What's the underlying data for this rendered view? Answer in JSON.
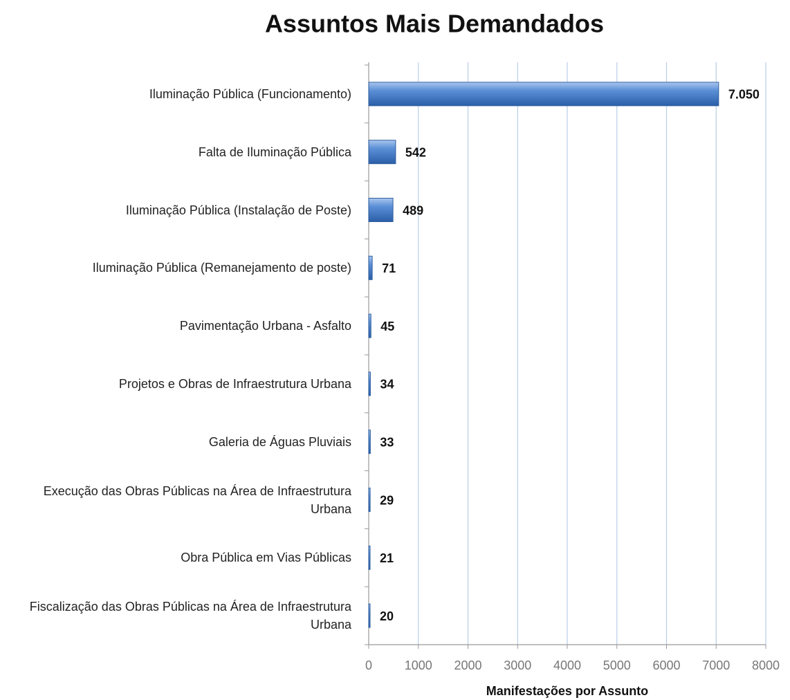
{
  "chart_data": {
    "type": "barh",
    "title": "Assuntos Mais Demandados",
    "x_label": "Manifestações por Assunto",
    "categories": [
      "Iluminação Pública (Funcionamento)",
      "Falta de Iluminação Pública",
      "Iluminação Pública (Instalação de Poste)",
      "Iluminação Pública (Remanejamento de poste)",
      "Pavimentação Urbana - Asfalto",
      "Projetos e Obras de Infraestrutura Urbana",
      "Galeria de Águas Pluviais",
      "Execução das Obras Públicas na Área de Infraestrutura Urbana",
      "Obra Pública em Vias Públicas",
      "Fiscalização das Obras Públicas na Área de Infraestrutura Urbana"
    ],
    "values": [
      7050,
      542,
      489,
      71,
      45,
      34,
      33,
      29,
      21,
      20
    ],
    "value_labels": [
      "7.050",
      "542",
      "489",
      "71",
      "45",
      "34",
      "33",
      "29",
      "21",
      "20"
    ],
    "color": "#4a7fc8",
    "xlim": [
      0,
      8000
    ],
    "xticks": [
      0,
      1000,
      2000,
      3000,
      4000,
      5000,
      6000,
      7000,
      8000
    ],
    "grid": true
  }
}
